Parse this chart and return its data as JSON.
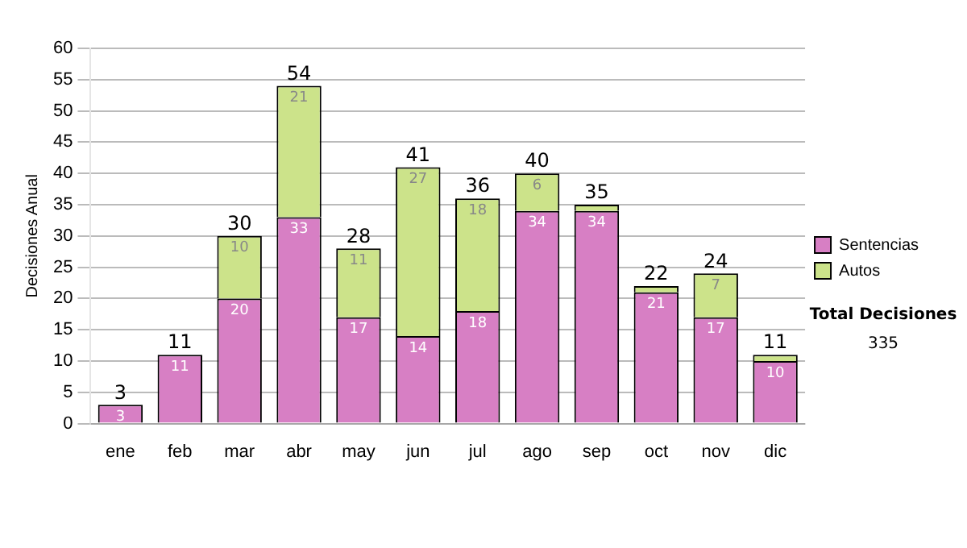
{
  "chart_data": {
    "type": "bar",
    "stacked": true,
    "ylabel": "Decisiones Anual",
    "categories": [
      "ene",
      "feb",
      "mar",
      "abr",
      "may",
      "jun",
      "jul",
      "ago",
      "sep",
      "oct",
      "nov",
      "dic"
    ],
    "series": [
      {
        "name": "Sentencias",
        "color": "#d77fc4",
        "values": [
          3,
          11,
          20,
          33,
          17,
          14,
          18,
          34,
          34,
          21,
          17,
          10
        ],
        "value_labels": [
          "3",
          "11",
          "20",
          "33",
          "17",
          "14",
          "18",
          "34",
          "34",
          "21",
          "17",
          "10"
        ]
      },
      {
        "name": "Autos",
        "color": "#cce38a",
        "values": [
          null,
          null,
          10,
          21,
          11,
          27,
          18,
          6,
          1,
          1,
          7,
          1
        ],
        "value_labels": [
          null,
          null,
          "10",
          "21",
          "11",
          "27",
          "18",
          "6",
          null,
          null,
          "7",
          null
        ]
      }
    ],
    "totals": [
      "3",
      "11",
      "30",
      "54",
      "28",
      "41",
      "36",
      "40",
      "35",
      "22",
      "24",
      "11"
    ],
    "ylim": [
      0,
      60
    ],
    "yticks": [
      0,
      5,
      10,
      15,
      20,
      25,
      30,
      35,
      40,
      45,
      50,
      55,
      60
    ],
    "grid": "y",
    "legend": "right",
    "annotations": [
      "Total Decisiones",
      "335"
    ]
  }
}
